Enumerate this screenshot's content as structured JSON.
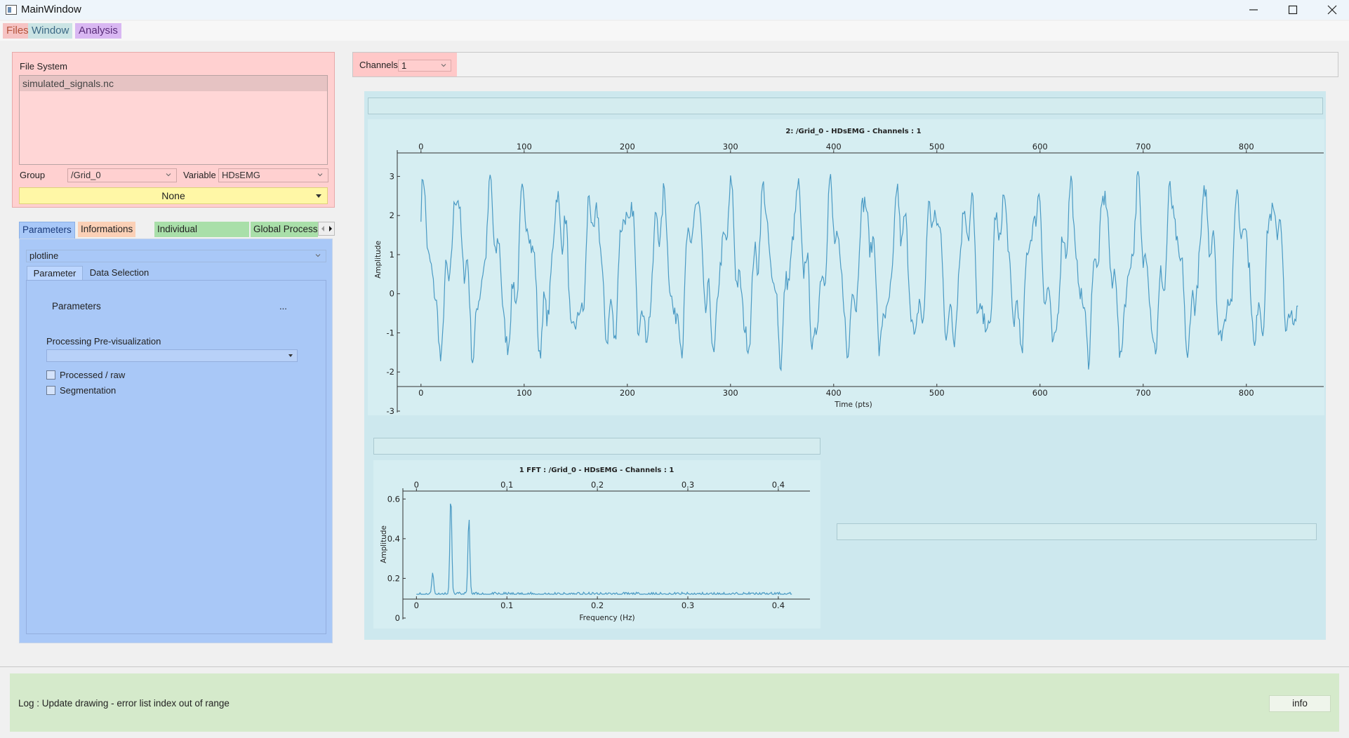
{
  "window": {
    "title": "MainWindow"
  },
  "menu": {
    "files": "Files",
    "window": "Window",
    "analysis": "Analysis"
  },
  "file_system": {
    "label": "File System",
    "files": [
      "simulated_signals.nc"
    ],
    "group_label": "Group",
    "group_value": "/Grid_0",
    "variable_label": "Variable",
    "variable_value": "HDsEMG",
    "selector_value": "None"
  },
  "tabs": [
    "Parameters",
    "Informations",
    "Individual Processing",
    "Global Processing"
  ],
  "params_panel": {
    "plot_type": "plotline",
    "subtab_parameter": "Parameter",
    "subtab_data": "Data Selection",
    "parameters_label": "Parameters",
    "more_button": "...",
    "prepro_label": "Processing Pre-visualization",
    "prepro_value": "",
    "checkbox_processed": "Processed / raw",
    "checkbox_segmentation": "Segmentation"
  },
  "channels": {
    "label": "Channels",
    "value": "1"
  },
  "colors": {
    "signal": "#4a9ac4",
    "files_menu": "#f6c3c3",
    "window_menu": "#cbe4e4",
    "analysis_menu": "#d9b7f2",
    "params_panel": "#a9c8f7",
    "log_panel": "#d5eacb"
  },
  "chart_data": [
    {
      "type": "line",
      "title": "2: /Grid_0 - HDsEMG - Channels : 1",
      "xlabel": "Time (pts)",
      "ylabel": "Amplitude",
      "xlim": [
        -23,
        875
      ],
      "ylim": [
        -3,
        3.6
      ],
      "x_ticks": [
        0,
        100,
        200,
        300,
        400,
        500,
        600,
        700,
        800
      ],
      "y_ticks": [
        -3,
        -2,
        -1,
        0,
        1,
        2,
        3
      ],
      "series": [
        {
          "x_range": [
            0,
            850
          ],
          "sample_count": 850,
          "dominant_period_pts": 33,
          "amplitude_range": [
            -2.2,
            3.4
          ]
        }
      ]
    },
    {
      "type": "line",
      "title": "1 FFT : /Grid_0 - HDsEMG - Channels : 1",
      "xlabel": "Frequency (Hz)",
      "ylabel": "Amplitude",
      "xlim": [
        -0.015,
        0.435
      ],
      "ylim": [
        0,
        0.64
      ],
      "x_ticks": [
        0,
        0.1,
        0.2,
        0.3,
        0.4
      ],
      "y_ticks": [
        0,
        0.2,
        0.4,
        0.6
      ],
      "series": [
        {
          "x_range": [
            0,
            0.415
          ],
          "baseline": 0.12,
          "peaks": [
            {
              "x": 0.018,
              "y": 0.23
            },
            {
              "x": 0.038,
              "y": 0.62
            },
            {
              "x": 0.058,
              "y": 0.51
            }
          ]
        }
      ]
    }
  ],
  "log": {
    "text": "Log :  Update drawing - error list index out of range",
    "info_button": "info"
  }
}
